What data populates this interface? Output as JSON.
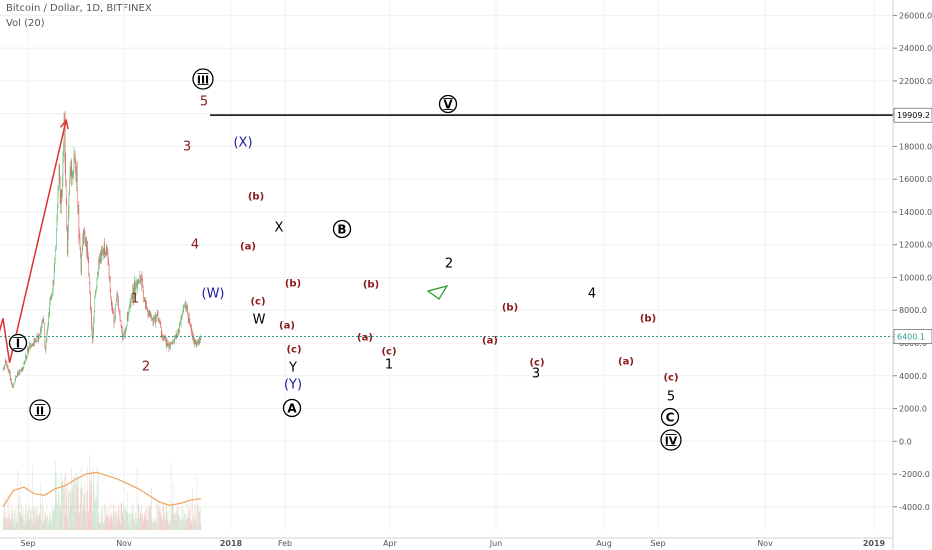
{
  "header": {
    "title": "Bitcoin / Dollar, 1D, BITFINEX",
    "indicator": "Vol (20)"
  },
  "colors": {
    "bull": "#6fbf7a",
    "bear": "#e06a6a",
    "vol_ma": "#f2a35a",
    "wave_dark": "#8b1a1a",
    "wave_blue": "#1a1aa0",
    "projection": "#e03030",
    "level_line": "#000000",
    "price_line": "#2e9e8e"
  },
  "chart_data": {
    "type": "candlestick",
    "title": "Bitcoin / Dollar, 1D, BITFINEX",
    "x_tick_labels": [
      "Sep",
      "Nov",
      "2018",
      "Feb",
      "Apr",
      "Jun",
      "Aug",
      "Sep",
      "Nov",
      "2019"
    ],
    "y_tick_labels": [
      "26000.0",
      "24000.0",
      "22000.0",
      "20000.0",
      "18000.0",
      "16000.0",
      "14000.0",
      "12000.0",
      "10000.0",
      "8000.0",
      "6000.0",
      "4000.0",
      "2000.0",
      "0.0",
      "-2000.0",
      "-4000.0"
    ],
    "ylim": [
      -4000,
      26000
    ],
    "price_labels": {
      "horizontal_level": "19909.2",
      "last_price": "6400.1"
    },
    "horizontal_level": 19909.2,
    "last_price": 6400.1,
    "price_path": [
      [
        "Aug 27",
        4350
      ],
      [
        "Sep 1",
        4900
      ],
      [
        "Sep 7",
        4200
      ],
      [
        "Sep 14",
        3200
      ],
      [
        "Sep 18",
        3900
      ],
      [
        "Oct 1",
        4400
      ],
      [
        "Oct 12",
        5600
      ],
      [
        "Oct 20",
        6000
      ],
      [
        "Oct 31",
        6400
      ],
      [
        "Nov 8",
        7600
      ],
      [
        "Nov 12",
        5600
      ],
      [
        "Nov 20",
        8200
      ],
      [
        "Nov 29",
        10500
      ],
      [
        "Dec 7",
        16500
      ],
      [
        "Dec 10",
        14000
      ],
      [
        "Dec 17",
        19800
      ],
      [
        "Dec 22",
        11500
      ],
      [
        "Dec 26",
        16000
      ],
      [
        "Jan 6",
        17200
      ],
      [
        "Jan 10",
        14500
      ],
      [
        "Jan 16",
        10500
      ],
      [
        "Jan 20",
        12800
      ],
      [
        "Jan 28",
        11500
      ],
      [
        "Feb 6",
        6000
      ],
      [
        "Feb 10",
        8800
      ],
      [
        "Feb 16",
        10500
      ],
      [
        "Feb 20",
        11500
      ],
      [
        "Mar 5",
        11700
      ],
      [
        "Mar 10",
        9000
      ],
      [
        "Mar 18",
        7300
      ],
      [
        "Mar 22",
        9000
      ],
      [
        "Apr 1",
        6600
      ],
      [
        "Apr 6",
        6600
      ],
      [
        "Apr 14",
        8200
      ],
      [
        "Apr 24",
        9400
      ],
      [
        "May 5",
        9900
      ],
      [
        "May 13",
        8300
      ],
      [
        "May 25",
        7400
      ],
      [
        "Jun 5",
        7700
      ],
      [
        "Jun 13",
        6400
      ],
      [
        "Jun 24",
        5800
      ],
      [
        "Jul 10",
        6400
      ],
      [
        "Jul 17",
        7400
      ],
      [
        "Jul 24",
        8400
      ],
      [
        "Jul 31",
        7600
      ],
      [
        "Aug 8",
        6300
      ],
      [
        "Aug 14",
        5900
      ],
      [
        "Aug 22",
        6400
      ]
    ],
    "volume_ma_axis_values": [
      -4000,
      -3000,
      -2800,
      -3200,
      -3300,
      -2900,
      -2700,
      -2300,
      -2000,
      -1900,
      -2100,
      -2300,
      -2600,
      -2900,
      -3300,
      -3700,
      -3900,
      -3800,
      -3600,
      -3500
    ],
    "projection_path": [
      [
        "Aug 14",
        5900
      ],
      [
        "Aug 27",
        7500
      ],
      [
        "Sep 8",
        4800
      ],
      [
        "Dec 20",
        19600
      ]
    ],
    "wave_labels": [
      {
        "text": "I",
        "style": "circle"
      },
      {
        "text": "II",
        "style": "circle"
      },
      {
        "text": "III",
        "style": "circle"
      },
      {
        "text": "A",
        "style": "circle"
      },
      {
        "text": "B",
        "style": "circle"
      },
      {
        "text": "C",
        "style": "circle"
      },
      {
        "text": "IV",
        "style": "circle"
      },
      {
        "text": "V",
        "style": "circle"
      },
      {
        "text": "1",
        "style": "dark"
      },
      {
        "text": "2",
        "style": "dark"
      },
      {
        "text": "3",
        "style": "dark"
      },
      {
        "text": "4",
        "style": "dark"
      },
      {
        "text": "5",
        "style": "dark"
      },
      {
        "text": "(X)",
        "style": "blue"
      },
      {
        "text": "(W)",
        "style": "blue"
      },
      {
        "text": "(Y)",
        "style": "blue"
      },
      {
        "text": "X",
        "style": "black"
      },
      {
        "text": "W",
        "style": "black"
      },
      {
        "text": "Y",
        "style": "black"
      },
      {
        "text": "1",
        "style": "black"
      },
      {
        "text": "2",
        "style": "black"
      },
      {
        "text": "3",
        "style": "black"
      },
      {
        "text": "4",
        "style": "black"
      },
      {
        "text": "5",
        "style": "black"
      },
      {
        "text": "(a)",
        "style": "small"
      },
      {
        "text": "(b)",
        "style": "small"
      },
      {
        "text": "(c)",
        "style": "small"
      },
      {
        "text": "(b)",
        "style": "small"
      },
      {
        "text": "(a)",
        "style": "small"
      },
      {
        "text": "(c)",
        "style": "small"
      },
      {
        "text": "(a)",
        "style": "small"
      },
      {
        "text": "(c)",
        "style": "small"
      },
      {
        "text": "(b)",
        "style": "small"
      },
      {
        "text": "(a)",
        "style": "small"
      },
      {
        "text": "(b)",
        "style": "small"
      },
      {
        "text": "(c)",
        "style": "small"
      },
      {
        "text": "(a)",
        "style": "small"
      },
      {
        "text": "(b)",
        "style": "small"
      },
      {
        "text": "(c)",
        "style": "small"
      }
    ]
  }
}
